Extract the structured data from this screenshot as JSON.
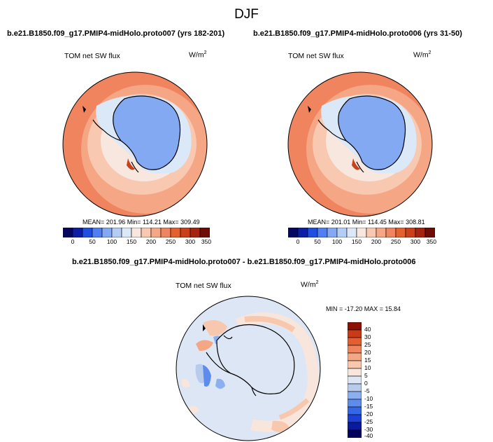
{
  "page": {
    "title": "DJF"
  },
  "chart_data": [
    {
      "type": "heatmap",
      "projection": "south-polar-stereographic",
      "title": "b.e21.B1850.f09_g17.PMIP4-midHolo.proto007 (yrs 182-201)",
      "variable": "TOM net SW flux",
      "units": "W/m",
      "units_exp": "2",
      "stats": "MEAN= 201.96  Min= 114.21  Max= 309.49",
      "colorbar": {
        "orientation": "horizontal",
        "colors": [
          "#06075f",
          "#0c1ea3",
          "#1f4fe0",
          "#4f7ff0",
          "#83a9f3",
          "#b4cdf5",
          "#dbe8f8",
          "#f7e7df",
          "#f8c8b0",
          "#f5a684",
          "#f0845e",
          "#e4602f",
          "#c9401b",
          "#a52410",
          "#6e0c05"
        ],
        "tick_labels": [
          "0",
          "50",
          "100",
          "150",
          "200",
          "250",
          "300",
          "350"
        ]
      },
      "features": [
        "ocean gradient 200-300 W/m2",
        "antarctic continent 120-160 W/m2",
        "sea-ice zone 170-200 W/m2"
      ]
    },
    {
      "type": "heatmap",
      "projection": "south-polar-stereographic",
      "title": "b.e21.B1850.f09_g17.PMIP4-midHolo.proto006 (yrs 31-50)",
      "variable": "TOM net SW flux",
      "units": "W/m",
      "units_exp": "2",
      "stats": "MEAN= 201.01  Min= 114.45  Max= 308.81",
      "colorbar": {
        "orientation": "horizontal",
        "colors": [
          "#06075f",
          "#0c1ea3",
          "#1f4fe0",
          "#4f7ff0",
          "#83a9f3",
          "#b4cdf5",
          "#dbe8f8",
          "#f7e7df",
          "#f8c8b0",
          "#f5a684",
          "#f0845e",
          "#e4602f",
          "#c9401b",
          "#a52410",
          "#6e0c05"
        ],
        "tick_labels": [
          "0",
          "50",
          "100",
          "150",
          "200",
          "250",
          "300",
          "350"
        ]
      },
      "features": [
        "ocean gradient 200-300 W/m2",
        "antarctic continent 120-160 W/m2",
        "sea-ice zone 170-200 W/m2"
      ]
    },
    {
      "type": "heatmap",
      "projection": "south-polar-stereographic",
      "title": "b.e21.B1850.f09_g17.PMIP4-midHolo.proto007 - b.e21.B1850.f09_g17.PMIP4-midHolo.proto006",
      "variable": "TOM net SW flux",
      "units": "W/m",
      "units_exp": "2",
      "stats": "MIN = -17.20 MAX =  15.84",
      "colorbar": {
        "orientation": "vertical",
        "colors": [
          "#00005e",
          "#0a1a9c",
          "#1d3fd6",
          "#3566e6",
          "#5d8bee",
          "#8cafef",
          "#b7cbed",
          "#dde6f4",
          "#f8e6dc",
          "#f7c8ad",
          "#f4a784",
          "#ef855f",
          "#e45e30",
          "#c93a17",
          "#8e1003"
        ],
        "tick_labels": [
          "40",
          "30",
          "25",
          "20",
          "15",
          "10",
          "5",
          "0",
          "-5",
          "-10",
          "-15",
          "-20",
          "-25",
          "-30",
          "-40"
        ]
      },
      "features": [
        "mostly near-zero differences",
        "positive anomalies on ocean ring",
        "negative anomalies near Antarctic Peninsula"
      ]
    }
  ]
}
